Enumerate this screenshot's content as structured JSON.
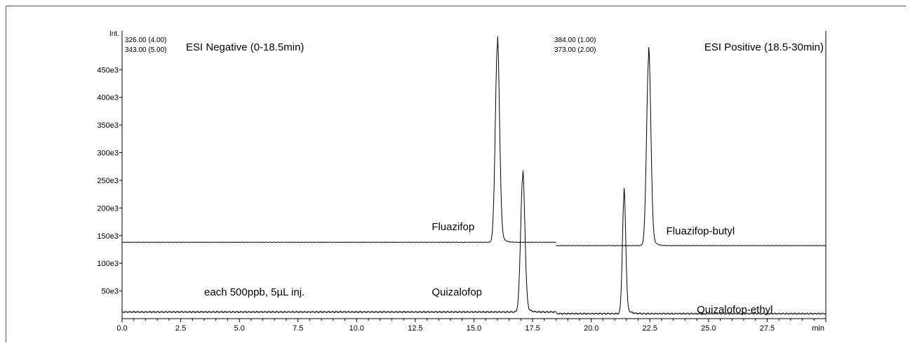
{
  "chart_data": {
    "type": "line",
    "y_axis_title": "Int.",
    "x_axis_unit": "min",
    "xlim": [
      0,
      30
    ],
    "ylim": [
      0,
      510000
    ],
    "x_ticks": [
      0,
      2.5,
      5,
      7.5,
      10,
      12.5,
      15,
      17.5,
      20,
      22.5,
      25,
      27.5
    ],
    "x_tick_labels": [
      "0.0",
      "2.5",
      "5.0",
      "7.5",
      "10.0",
      "12.5",
      "15.0",
      "17.5",
      "20.0",
      "22.5",
      "25.0",
      "27.5"
    ],
    "y_ticks": [
      50000,
      100000,
      150000,
      200000,
      250000,
      300000,
      350000,
      400000,
      450000
    ],
    "y_tick_labels": [
      "50e3",
      "100e3",
      "150e3",
      "200e3",
      "250e3",
      "300e3",
      "350e3",
      "400e3",
      "450e3"
    ],
    "segments": [
      {
        "title": "ESI Negative (0-18.5min)",
        "channels": [
          "326.00 (4.00)",
          "343.00 (5.00)"
        ],
        "x_range": [
          0,
          18.5
        ]
      },
      {
        "title": "ESI Positive (18.5-30min)",
        "channels": [
          "384.00 (1.00)",
          "373.00 (2.00)"
        ],
        "x_range": [
          18.5,
          30
        ]
      }
    ],
    "series": [
      {
        "name": "Fluazifop",
        "x_range": [
          0,
          18.5
        ],
        "baseline": 138000,
        "peak_x": 16.0,
        "peak_height": 492000,
        "peak_width": 0.09
      },
      {
        "name": "Quizalofop",
        "x_range": [
          0,
          18.5
        ],
        "baseline": 12000,
        "peak_x": 17.08,
        "peak_height": 255000,
        "peak_width": 0.09
      },
      {
        "name": "Fluazifop-butyl",
        "x_range": [
          18.5,
          30
        ],
        "baseline": 132000,
        "peak_x": 22.45,
        "peak_height": 470000,
        "peak_width": 0.09
      },
      {
        "name": "Quizalofop-ethyl",
        "x_range": [
          18.5,
          30
        ],
        "baseline": 9000,
        "peak_x": 21.4,
        "peak_height": 222000,
        "peak_width": 0.07
      }
    ],
    "annotations": [
      {
        "text": "Fluazifop",
        "x": 13.2,
        "y": 160000
      },
      {
        "text": "Quizalofop",
        "x": 13.2,
        "y": 42000
      },
      {
        "text": "Fluazifop-butyl",
        "x": 23.2,
        "y": 152000
      },
      {
        "text": "Quizalofop-ethyl",
        "x": 24.5,
        "y": 10000
      },
      {
        "text": "each 500ppb, 5µL inj.",
        "x": 3.5,
        "y": 42000
      }
    ]
  }
}
